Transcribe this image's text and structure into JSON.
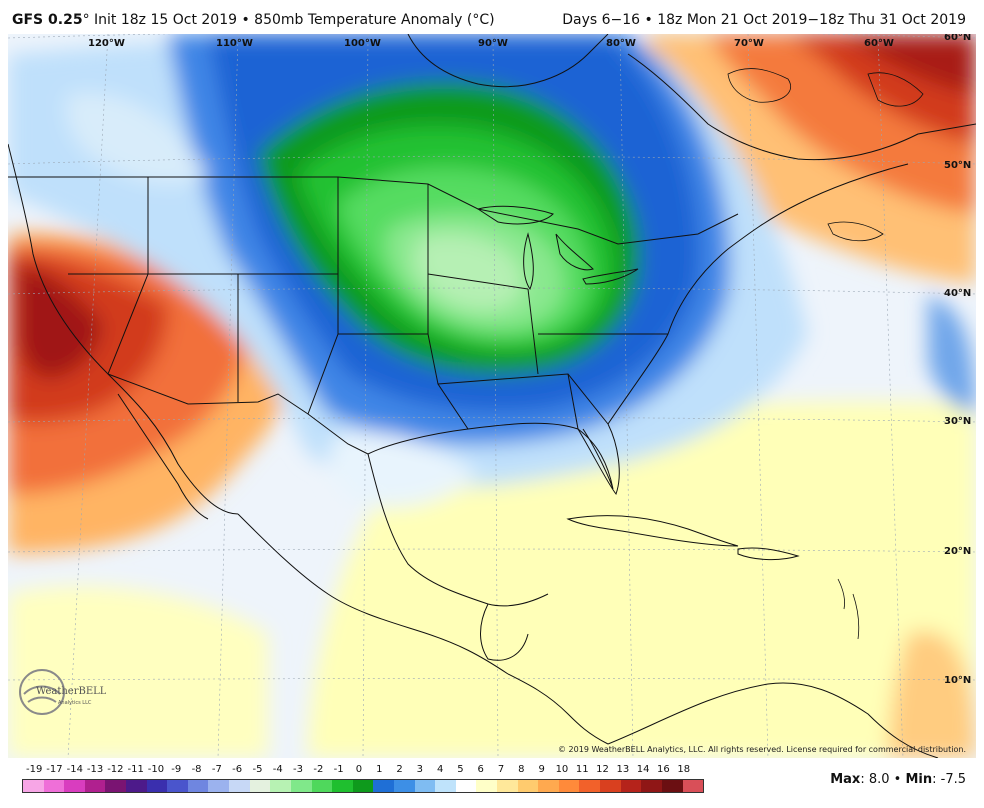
{
  "header": {
    "model": "GFS 0.25",
    "model_suffix": "° Init 18z 15 Oct 2019 • 850mb Temperature Anomaly (°C)",
    "valid": "Days 6−16 • 18z Mon 21 Oct 2019−18z Thu 31 Oct 2019"
  },
  "map": {
    "longitude_labels": [
      "120°W",
      "110°W",
      "100°W",
      "90°W",
      "80°W",
      "70°W",
      "60°W"
    ],
    "latitude_labels": [
      "60°N",
      "50°N",
      "40°N",
      "30°N",
      "20°N",
      "10°N"
    ],
    "copyright": "© 2019 WeatherBELL Analytics, LLC. All rights reserved. License required for commercial distribution.",
    "logo_text": "WeatherBELL",
    "logo_subtext": "Analytics LLC"
  },
  "colorbar": {
    "labels": [
      "-19",
      "-17",
      "-14",
      "-13",
      "-12",
      "-11",
      "-10",
      "-9",
      "-8",
      "-7",
      "-6",
      "-5",
      "-4",
      "-3",
      "-2",
      "-1",
      "0",
      "1",
      "2",
      "3",
      "4",
      "5",
      "6",
      "7",
      "8",
      "9",
      "10",
      "11",
      "12",
      "13",
      "14",
      "16",
      "18"
    ],
    "colors": [
      "#f7a6e6",
      "#ef6fd8",
      "#d93dbf",
      "#b0208f",
      "#7a1472",
      "#4d1a8a",
      "#3a2fae",
      "#4a55cc",
      "#6f86e0",
      "#9bb2ee",
      "#c7d8f6",
      "#e4f1df",
      "#b7f2b3",
      "#80e88a",
      "#4fd85c",
      "#1fbf2f",
      "#0e9a1c",
      "#1f6fd6",
      "#3d8fe6",
      "#7fbcf2",
      "#bfe3fb",
      "#ffffff",
      "#ffffc8",
      "#ffe89a",
      "#ffcb6e",
      "#ffa94f",
      "#ff8a3a",
      "#f2612a",
      "#d9401f",
      "#b5231b",
      "#8f1616",
      "#6b0f12",
      "#d94f58"
    ]
  },
  "stats": {
    "max_label": "Max",
    "max_value": "8.0",
    "min_label": "Min",
    "min_value": "-7.5"
  }
}
